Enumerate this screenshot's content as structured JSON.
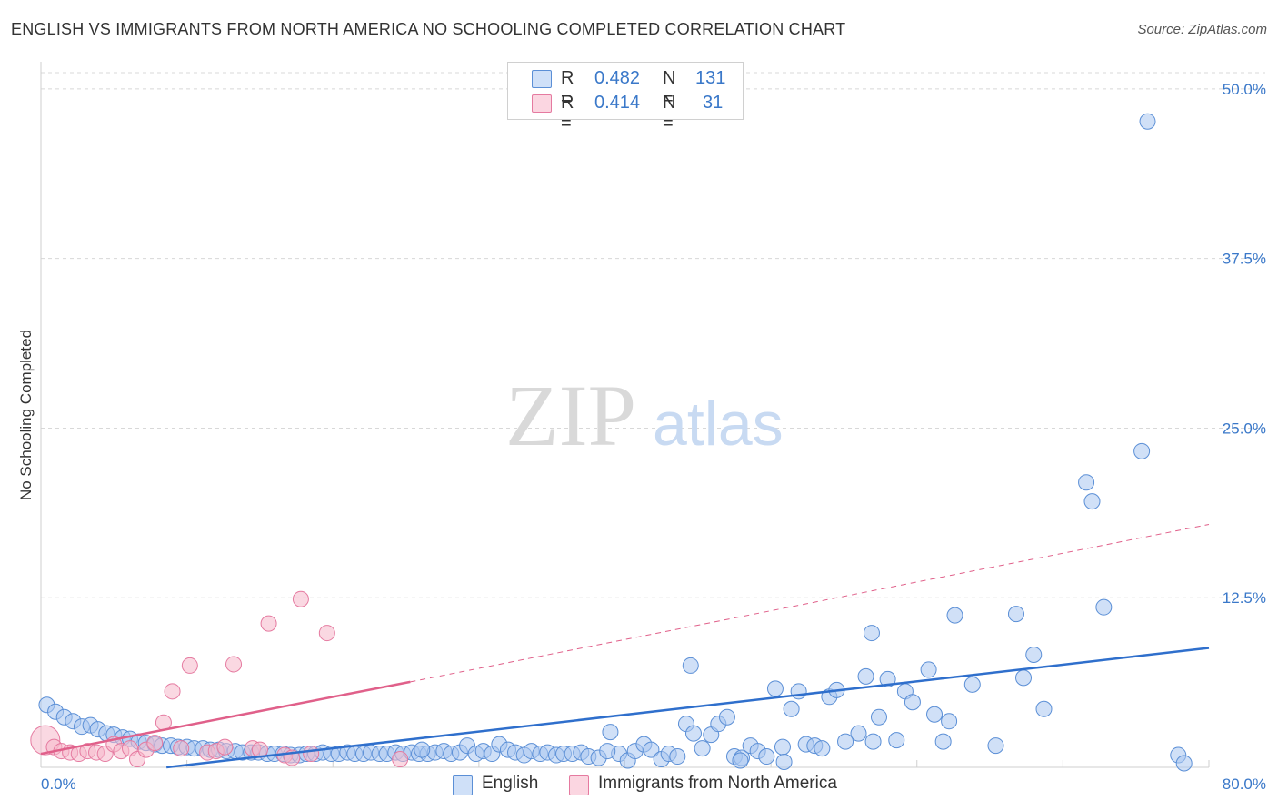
{
  "header": {
    "title": "ENGLISH VS IMMIGRANTS FROM NORTH AMERICA NO SCHOOLING COMPLETED CORRELATION CHART",
    "source": "Source: ZipAtlas.com"
  },
  "legend_stats": [
    {
      "r_label": "R =",
      "r_value": "0.482",
      "n_label": "N =",
      "n_value": "131",
      "color": "#a9c6f0"
    },
    {
      "r_label": "R =",
      "r_value": "0.414",
      "n_label": "N =",
      "n_value": "31",
      "color": "#f5b8cb"
    }
  ],
  "colors": {
    "english_fill": "#a9c6f0",
    "english_stroke": "#5b8fd6",
    "english_line": "#2f6fcc",
    "immigrants_fill": "#f5b8cb",
    "immigrants_stroke": "#e57aa0",
    "immigrants_line": "#e0608a",
    "tick_text": "#3a78c9",
    "grid": "#d8d8d8"
  },
  "chart_data": {
    "type": "scatter",
    "title": "ENGLISH VS IMMIGRANTS FROM NORTH AMERICA NO SCHOOLING COMPLETED CORRELATION CHART",
    "xlabel": "",
    "ylabel": "No Schooling Completed",
    "xlim": [
      0,
      80
    ],
    "ylim": [
      0,
      52
    ],
    "x_tick_labels": [
      "0.0%",
      "80.0%"
    ],
    "y_tick_labels": [
      "12.5%",
      "25.0%",
      "37.5%",
      "50.0%"
    ],
    "y_ticks": [
      12.5,
      25.0,
      37.5,
      50.0
    ],
    "grid": true,
    "legend_placement": "top-center and bottom",
    "series": [
      {
        "name": "English",
        "r": 0.482,
        "n": 131,
        "trend": {
          "x": [
            8.6,
            80
          ],
          "y": [
            0.0,
            8.8
          ]
        },
        "points": [
          [
            0.4,
            4.6
          ],
          [
            1.0,
            4.1
          ],
          [
            1.6,
            3.7
          ],
          [
            2.2,
            3.4
          ],
          [
            2.8,
            3.0
          ],
          [
            3.4,
            3.1
          ],
          [
            3.9,
            2.8
          ],
          [
            4.5,
            2.5
          ],
          [
            5.0,
            2.4
          ],
          [
            5.6,
            2.2
          ],
          [
            6.1,
            2.1
          ],
          [
            6.7,
            1.9
          ],
          [
            7.2,
            1.8
          ],
          [
            7.8,
            1.7
          ],
          [
            8.3,
            1.6
          ],
          [
            8.9,
            1.6
          ],
          [
            9.4,
            1.5
          ],
          [
            10.0,
            1.5
          ],
          [
            10.5,
            1.4
          ],
          [
            11.1,
            1.4
          ],
          [
            11.6,
            1.3
          ],
          [
            12.2,
            1.3
          ],
          [
            12.7,
            1.2
          ],
          [
            13.3,
            1.2
          ],
          [
            13.8,
            1.1
          ],
          [
            14.4,
            1.1
          ],
          [
            14.9,
            1.1
          ],
          [
            15.5,
            1.0
          ],
          [
            16.0,
            1.0
          ],
          [
            16.6,
            1.0
          ],
          [
            17.1,
            0.9
          ],
          [
            17.7,
            0.9
          ],
          [
            18.2,
            1.0
          ],
          [
            18.8,
            1.0
          ],
          [
            19.3,
            1.1
          ],
          [
            19.9,
            1.0
          ],
          [
            20.4,
            1.0
          ],
          [
            21.0,
            1.1
          ],
          [
            21.5,
            1.0
          ],
          [
            22.1,
            1.0
          ],
          [
            22.6,
            1.1
          ],
          [
            23.2,
            1.0
          ],
          [
            23.7,
            1.0
          ],
          [
            24.3,
            1.1
          ],
          [
            24.8,
            1.0
          ],
          [
            25.4,
            1.1
          ],
          [
            25.9,
            1.0
          ],
          [
            26.5,
            1.0
          ],
          [
            27.0,
            1.1
          ],
          [
            27.6,
            1.2
          ],
          [
            28.1,
            1.0
          ],
          [
            28.7,
            1.1
          ],
          [
            29.2,
            1.6
          ],
          [
            29.8,
            1.0
          ],
          [
            30.3,
            1.2
          ],
          [
            30.9,
            1.0
          ],
          [
            31.4,
            1.7
          ],
          [
            32.0,
            1.3
          ],
          [
            32.5,
            1.1
          ],
          [
            33.1,
            0.9
          ],
          [
            33.6,
            1.2
          ],
          [
            34.2,
            1.0
          ],
          [
            34.7,
            1.1
          ],
          [
            35.3,
            0.9
          ],
          [
            35.8,
            1.0
          ],
          [
            36.4,
            1.0
          ],
          [
            37.0,
            1.1
          ],
          [
            37.5,
            0.8
          ],
          [
            38.2,
            0.7
          ],
          [
            39.0,
            2.6
          ],
          [
            39.6,
            1.0
          ],
          [
            40.2,
            0.5
          ],
          [
            40.7,
            1.2
          ],
          [
            41.3,
            1.7
          ],
          [
            41.8,
            1.3
          ],
          [
            42.5,
            0.6
          ],
          [
            43.0,
            1.0
          ],
          [
            43.6,
            0.8
          ],
          [
            44.2,
            3.2
          ],
          [
            44.7,
            2.5
          ],
          [
            45.3,
            1.4
          ],
          [
            45.9,
            2.4
          ],
          [
            46.4,
            3.2
          ],
          [
            47.0,
            3.7
          ],
          [
            47.5,
            0.8
          ],
          [
            48.0,
            0.7
          ],
          [
            48.6,
            1.6
          ],
          [
            49.1,
            1.2
          ],
          [
            49.7,
            0.8
          ],
          [
            50.3,
            5.8
          ],
          [
            50.8,
            1.5
          ],
          [
            51.4,
            4.3
          ],
          [
            51.9,
            5.6
          ],
          [
            52.4,
            1.7
          ],
          [
            53.0,
            1.6
          ],
          [
            53.5,
            1.4
          ],
          [
            54.0,
            5.2
          ],
          [
            54.5,
            5.7
          ],
          [
            55.1,
            1.9
          ],
          [
            56.0,
            2.5
          ],
          [
            56.5,
            6.7
          ],
          [
            57.0,
            1.9
          ],
          [
            57.4,
            3.7
          ],
          [
            58.0,
            6.5
          ],
          [
            58.6,
            2.0
          ],
          [
            59.2,
            5.6
          ],
          [
            59.7,
            4.8
          ],
          [
            60.8,
            7.2
          ],
          [
            61.2,
            3.9
          ],
          [
            61.8,
            1.9
          ],
          [
            62.6,
            11.2
          ],
          [
            62.2,
            3.4
          ],
          [
            63.8,
            6.1
          ],
          [
            65.4,
            1.6
          ],
          [
            67.3,
            6.6
          ],
          [
            68.0,
            8.3
          ],
          [
            68.7,
            4.3
          ],
          [
            71.6,
            21.0
          ],
          [
            72.0,
            19.6
          ],
          [
            72.8,
            11.8
          ],
          [
            75.4,
            23.3
          ],
          [
            75.8,
            47.6
          ],
          [
            77.9,
            0.9
          ],
          [
            78.3,
            0.3
          ],
          [
            44.5,
            7.5
          ],
          [
            56.9,
            9.9
          ],
          [
            66.8,
            11.3
          ],
          [
            38.8,
            1.2
          ],
          [
            50.9,
            0.4
          ],
          [
            47.9,
            0.5
          ],
          [
            26.1,
            1.3
          ]
        ]
      },
      {
        "name": "Immigrants from North America",
        "r": 0.414,
        "n": 31,
        "trend": {
          "x": [
            0,
            25.3
          ],
          "y": [
            1.0,
            6.3
          ],
          "dashed_extension": {
            "x": [
              25.3,
              80
            ],
            "y": [
              6.3,
              17.9
            ]
          }
        },
        "points": [
          [
            0.3,
            2.0
          ],
          [
            0.9,
            1.5
          ],
          [
            1.4,
            1.2
          ],
          [
            2.0,
            1.1
          ],
          [
            2.6,
            1.0
          ],
          [
            3.2,
            1.2
          ],
          [
            3.8,
            1.1
          ],
          [
            4.4,
            1.0
          ],
          [
            5.0,
            1.7
          ],
          [
            5.5,
            1.2
          ],
          [
            6.1,
            1.4
          ],
          [
            6.6,
            0.6
          ],
          [
            7.2,
            1.3
          ],
          [
            7.8,
            1.8
          ],
          [
            8.4,
            3.3
          ],
          [
            9.0,
            5.6
          ],
          [
            9.6,
            1.4
          ],
          [
            10.2,
            7.5
          ],
          [
            11.4,
            1.1
          ],
          [
            12.0,
            1.2
          ],
          [
            12.6,
            1.5
          ],
          [
            13.2,
            7.6
          ],
          [
            14.5,
            1.4
          ],
          [
            15.0,
            1.3
          ],
          [
            15.6,
            10.6
          ],
          [
            16.7,
            0.9
          ],
          [
            17.2,
            0.7
          ],
          [
            17.8,
            12.4
          ],
          [
            18.5,
            1.0
          ],
          [
            19.6,
            9.9
          ],
          [
            24.6,
            0.6
          ]
        ]
      }
    ]
  },
  "watermark": {
    "zip": "ZIP",
    "atlas": "atlas"
  }
}
